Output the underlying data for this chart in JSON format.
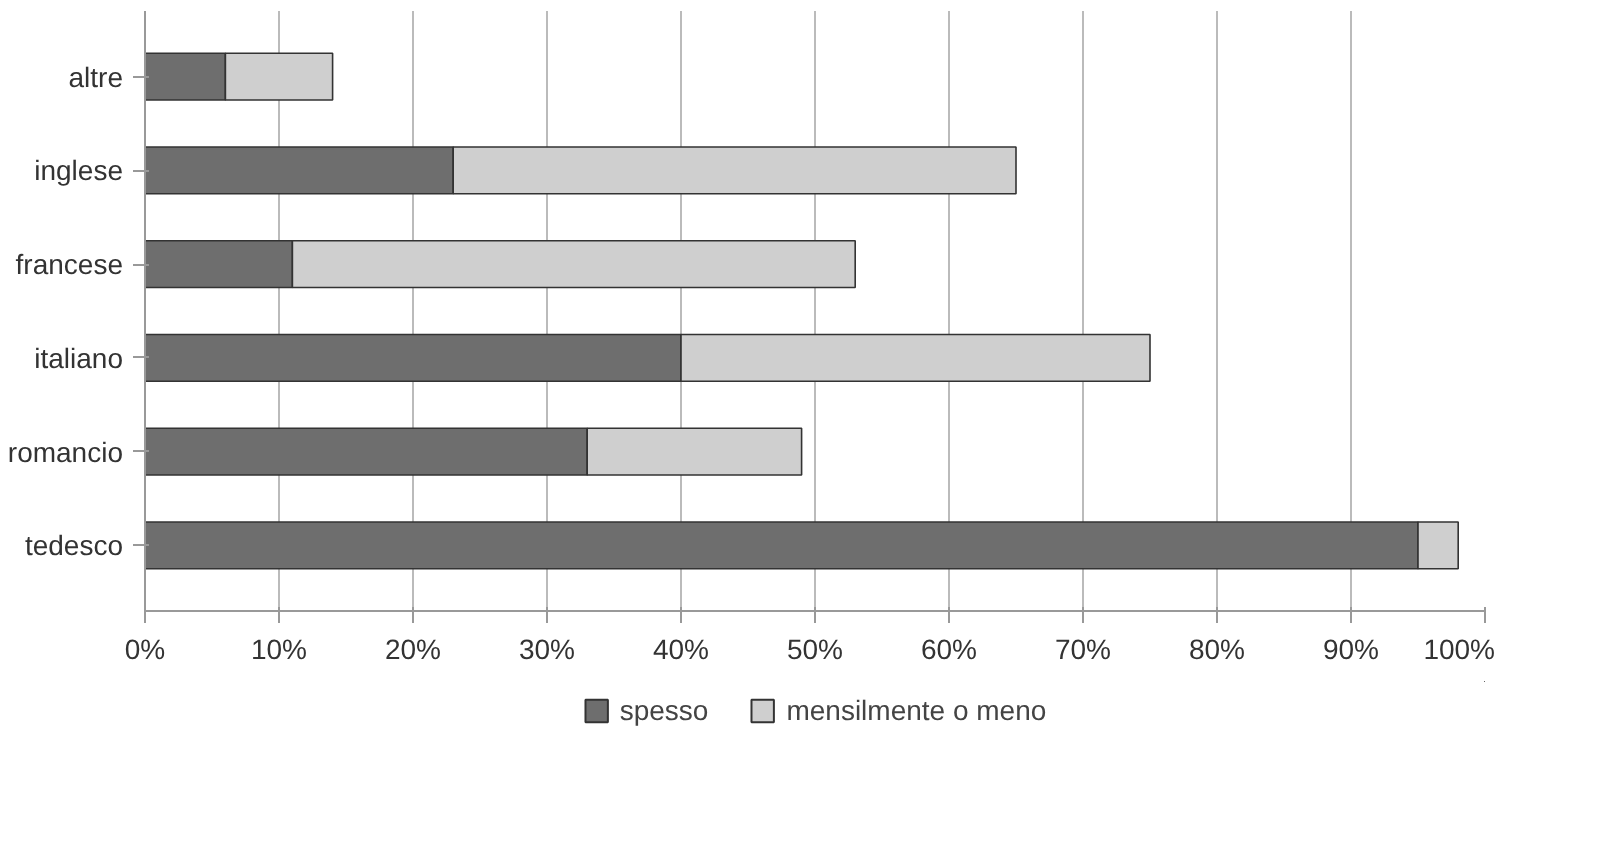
{
  "chart_data": {
    "type": "bar",
    "orientation": "horizontal",
    "stacked": true,
    "categories": [
      "altre",
      "inglese",
      "francese",
      "italiano",
      "romancio",
      "tedesco"
    ],
    "series": [
      {
        "name": "spesso",
        "color": "#6e6e6e",
        "values": [
          6,
          23,
          11,
          40,
          33,
          95
        ]
      },
      {
        "name": "mensilmente o meno",
        "color": "#cfcfcf",
        "values": [
          8,
          42,
          42,
          35,
          16,
          3
        ]
      }
    ],
    "xlim": [
      0,
      100
    ],
    "xticks": [
      {
        "value": 0,
        "label": "0%"
      },
      {
        "value": 10,
        "label": "10%"
      },
      {
        "value": 20,
        "label": "20%"
      },
      {
        "value": 30,
        "label": "30%"
      },
      {
        "value": 40,
        "label": "40%"
      },
      {
        "value": 50,
        "label": "50%"
      },
      {
        "value": 60,
        "label": "60%"
      },
      {
        "value": 70,
        "label": "70%"
      },
      {
        "value": 80,
        "label": "80%"
      },
      {
        "value": 90,
        "label": "90%"
      },
      {
        "value": 100,
        "label": "100%"
      }
    ],
    "grid": "x",
    "legend": "bottom"
  }
}
